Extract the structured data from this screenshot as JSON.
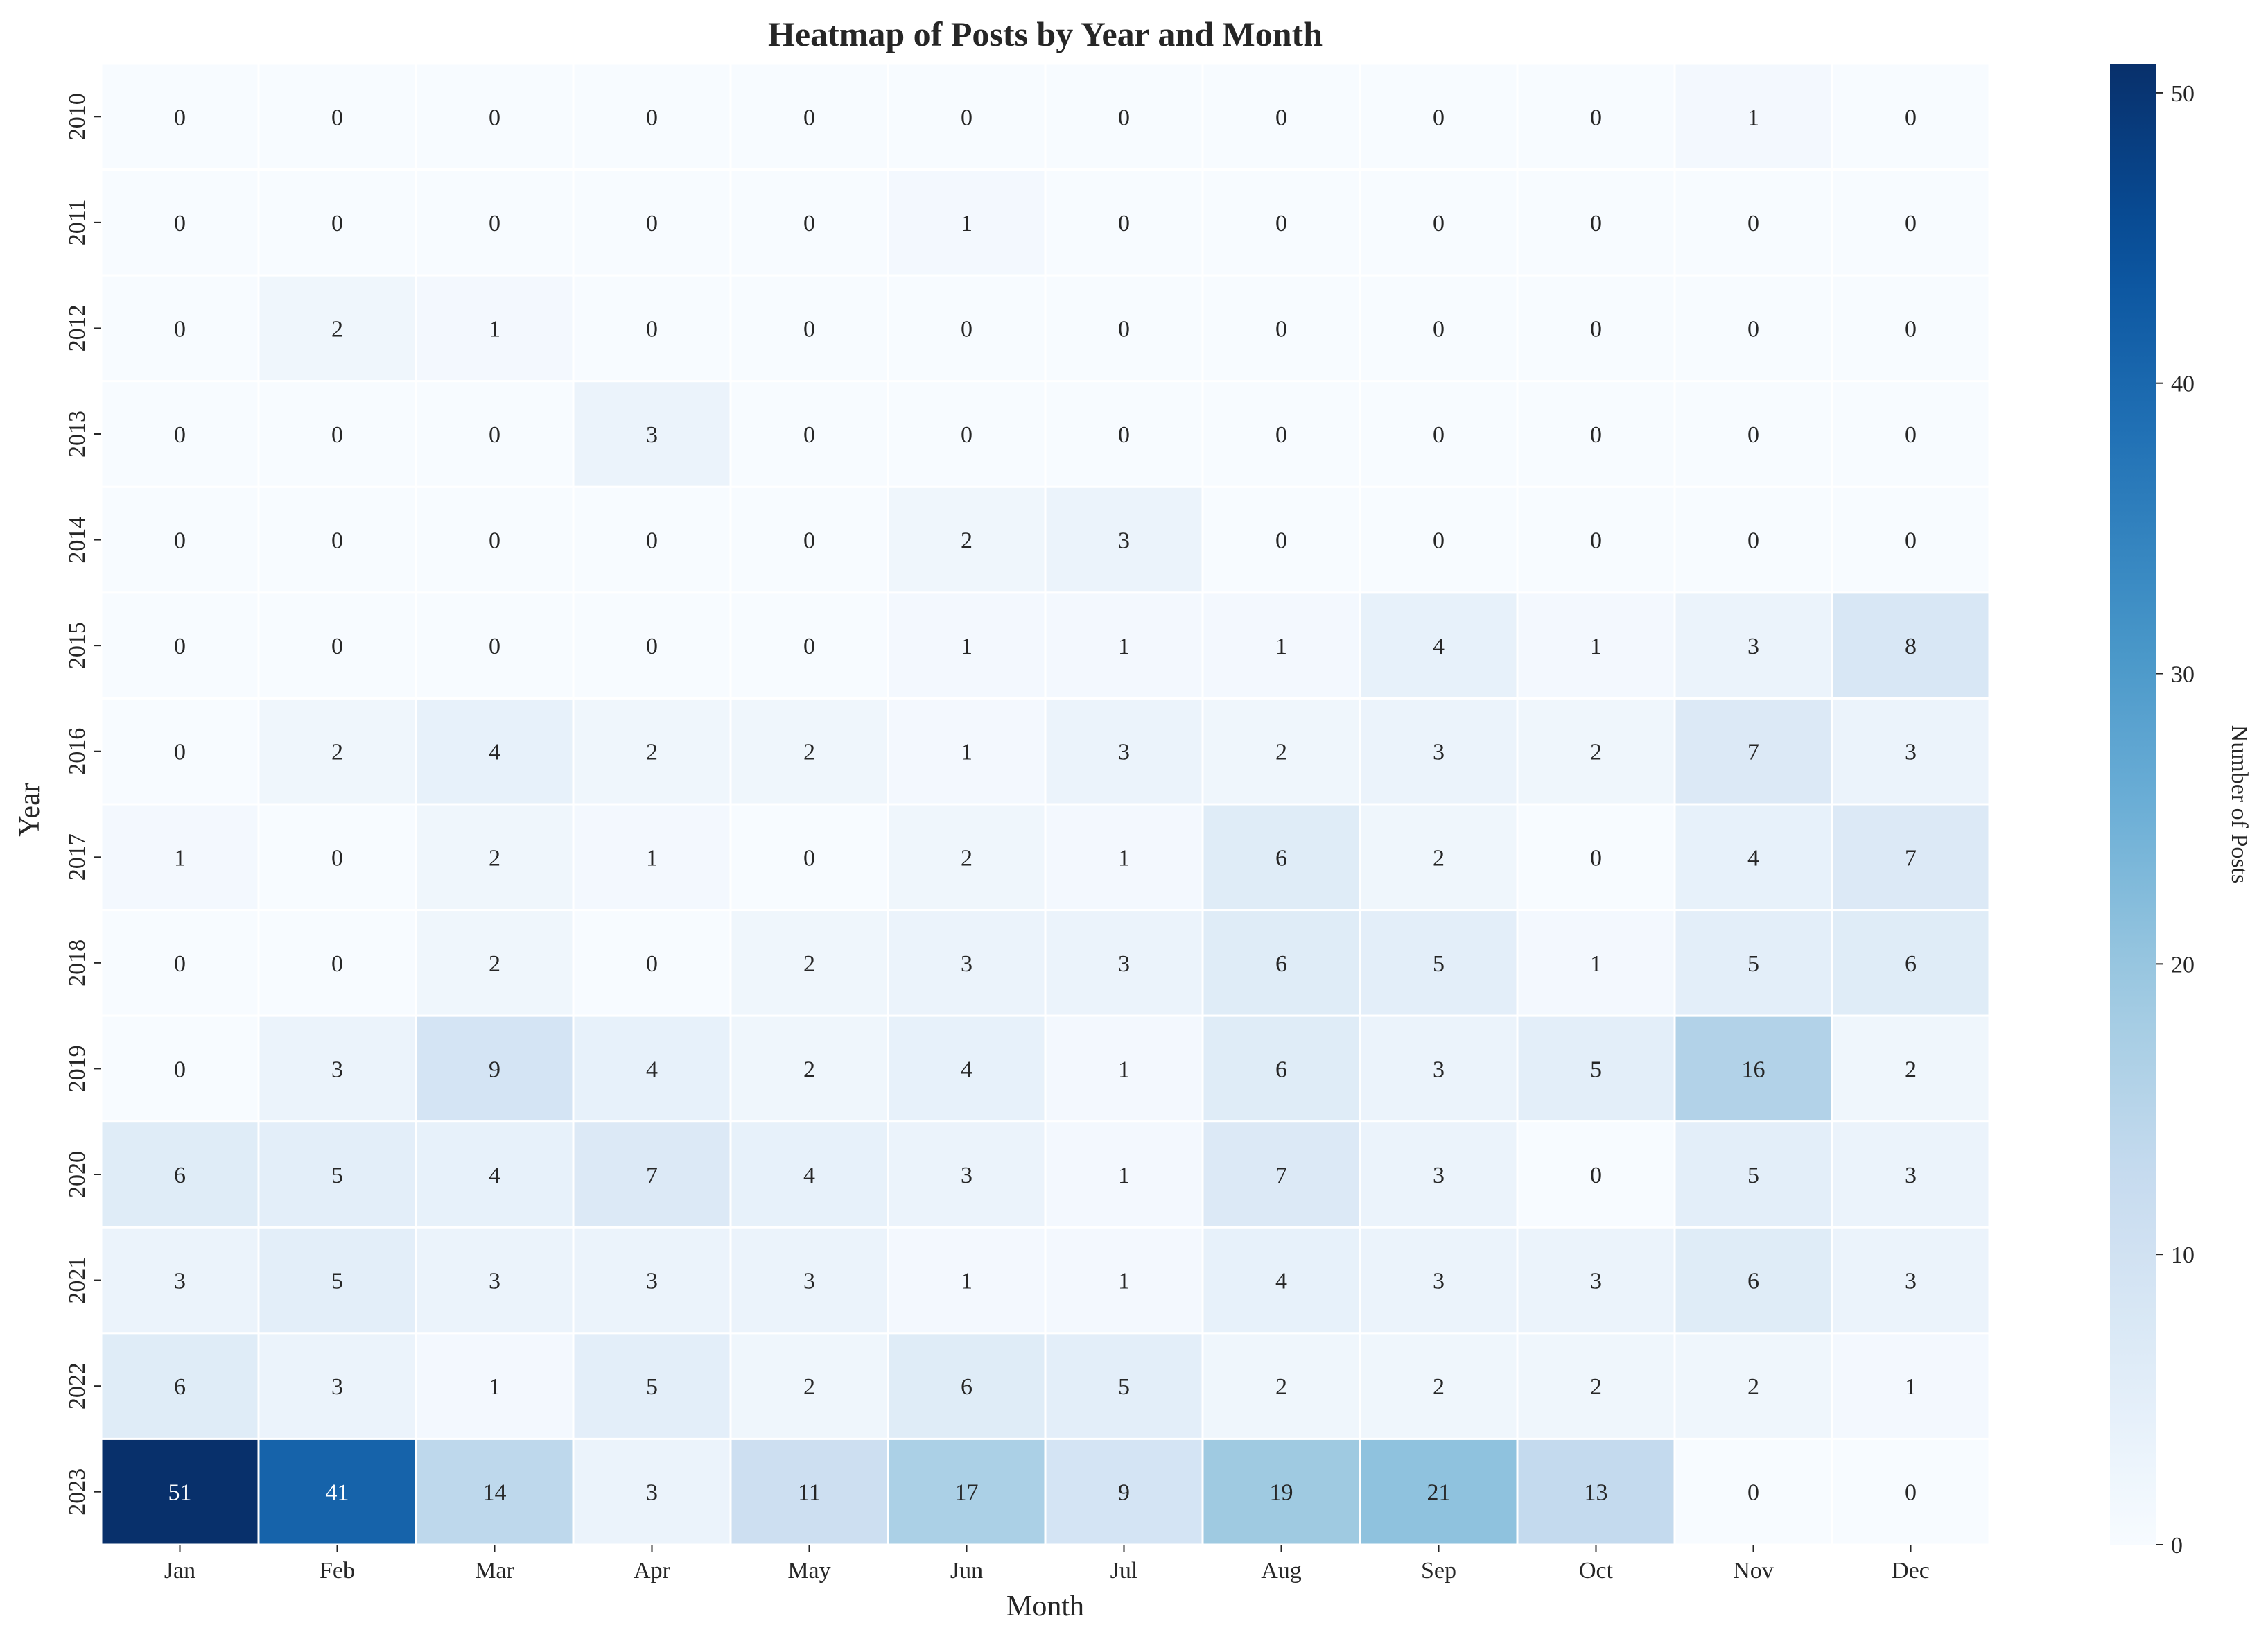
{
  "chart_data": {
    "type": "heatmap",
    "title": "Heatmap of Posts by Year and Month",
    "xlabel": "Month",
    "ylabel": "Year",
    "x_categories": [
      "Jan",
      "Feb",
      "Mar",
      "Apr",
      "May",
      "Jun",
      "Jul",
      "Aug",
      "Sep",
      "Oct",
      "Nov",
      "Dec"
    ],
    "y_categories": [
      "2010",
      "2011",
      "2012",
      "2013",
      "2014",
      "2015",
      "2016",
      "2017",
      "2018",
      "2019",
      "2020",
      "2021",
      "2022",
      "2023"
    ],
    "values": [
      [
        0,
        0,
        0,
        0,
        0,
        0,
        0,
        0,
        0,
        0,
        1,
        0
      ],
      [
        0,
        0,
        0,
        0,
        0,
        1,
        0,
        0,
        0,
        0,
        0,
        0
      ],
      [
        0,
        2,
        1,
        0,
        0,
        0,
        0,
        0,
        0,
        0,
        0,
        0
      ],
      [
        0,
        0,
        0,
        3,
        0,
        0,
        0,
        0,
        0,
        0,
        0,
        0
      ],
      [
        0,
        0,
        0,
        0,
        0,
        2,
        3,
        0,
        0,
        0,
        0,
        0
      ],
      [
        0,
        0,
        0,
        0,
        0,
        1,
        1,
        1,
        4,
        1,
        3,
        8
      ],
      [
        0,
        2,
        4,
        2,
        2,
        1,
        3,
        2,
        3,
        2,
        7,
        3
      ],
      [
        1,
        0,
        2,
        1,
        0,
        2,
        1,
        6,
        2,
        0,
        4,
        7
      ],
      [
        0,
        0,
        2,
        0,
        2,
        3,
        3,
        6,
        5,
        1,
        5,
        6
      ],
      [
        0,
        3,
        9,
        4,
        2,
        4,
        1,
        6,
        3,
        5,
        16,
        2
      ],
      [
        6,
        5,
        4,
        7,
        4,
        3,
        1,
        7,
        3,
        0,
        5,
        3
      ],
      [
        3,
        5,
        3,
        3,
        3,
        1,
        1,
        4,
        3,
        3,
        6,
        3
      ],
      [
        6,
        3,
        1,
        5,
        2,
        6,
        5,
        2,
        2,
        2,
        2,
        1
      ],
      [
        51,
        41,
        14,
        3,
        11,
        17,
        9,
        19,
        21,
        13,
        0,
        0
      ]
    ],
    "colorbar": {
      "label": "Number of Posts",
      "min": 0,
      "max": 51,
      "ticks": [
        0,
        10,
        20,
        30,
        40,
        50
      ],
      "colormap": "Blues",
      "color_low": "#f7fbff",
      "color_high": "#08306b"
    },
    "grid": false,
    "cell_border_color": "#ffffff"
  }
}
